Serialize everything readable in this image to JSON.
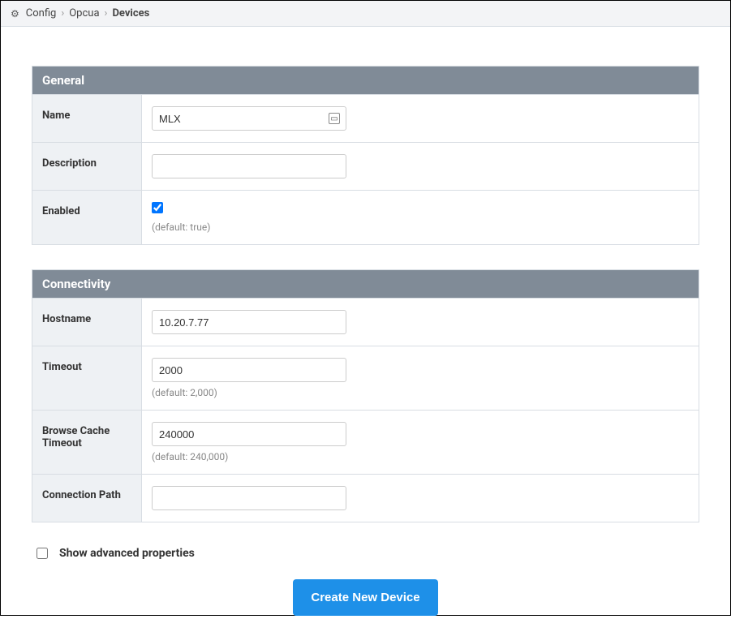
{
  "breadcrumb": {
    "items": [
      {
        "label": "Config"
      },
      {
        "label": "Opcua"
      },
      {
        "label": "Devices"
      }
    ]
  },
  "sections": {
    "general": {
      "title": "General",
      "fields": {
        "name": {
          "label": "Name",
          "value": "MLX"
        },
        "description": {
          "label": "Description",
          "value": ""
        },
        "enabled": {
          "label": "Enabled",
          "checked": true,
          "default_hint": "(default: true)"
        }
      }
    },
    "connectivity": {
      "title": "Connectivity",
      "fields": {
        "hostname": {
          "label": "Hostname",
          "value": "10.20.7.77"
        },
        "timeout": {
          "label": "Timeout",
          "value": "2000",
          "default_hint": "(default: 2,000)"
        },
        "browse_cache_timeout": {
          "label": "Browse Cache Timeout",
          "value": "240000",
          "default_hint": "(default: 240,000)"
        },
        "connection_path": {
          "label": "Connection Path",
          "value": ""
        }
      }
    }
  },
  "advanced": {
    "label": "Show advanced properties",
    "checked": false
  },
  "actions": {
    "create_label": "Create New Device"
  },
  "colors": {
    "breadcrumb_bg": "#f3f4f6",
    "section_header_bg": "#808b97",
    "label_bg": "#eef1f4",
    "border": "#d8dde3",
    "primary_button": "#1e90e8",
    "hint_text": "#888"
  }
}
